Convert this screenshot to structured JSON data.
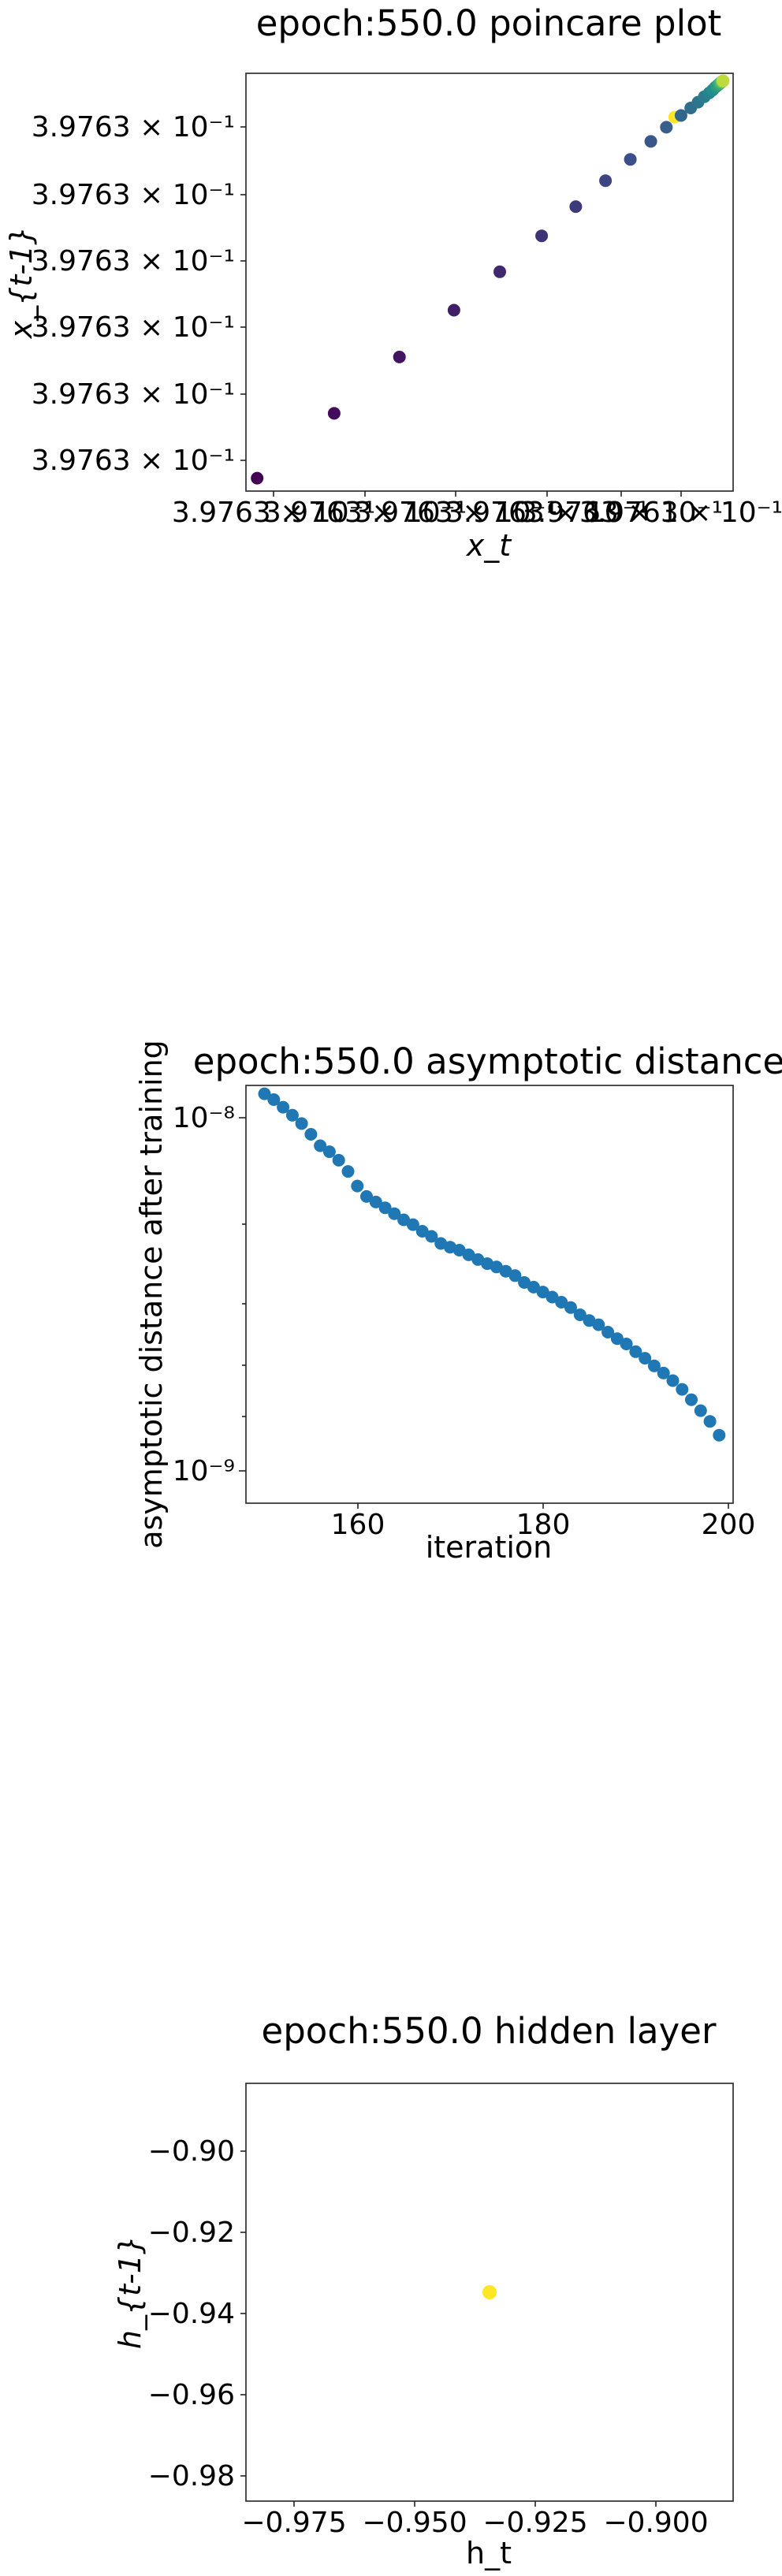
{
  "colors": {
    "viridis_dark": "#440154",
    "viridis_mid": "#3b528b",
    "viridis_teal": "#21918c",
    "viridis_green": "#5ec962",
    "viridis_yellow": "#fde725",
    "tab_blue": "#1f77b4"
  },
  "chart_data": [
    {
      "type": "scatter",
      "title": "epoch:550.0 poincare plot",
      "xlabel": "x_t",
      "ylabel": "x_{t-1}",
      "colormap": "viridis",
      "x_tick_labels": [
        "3.9763 × 10⁻¹",
        "3.9763 × 10⁻¹",
        "3.9763 × 10⁻¹",
        "3.9763 × 10⁻¹",
        "3.9763 × 10⁻¹",
        "3.9763 × 10⁻¹"
      ],
      "y_tick_labels": [
        "3.9763 × 10⁻¹",
        "3.9763 × 10⁻¹",
        "3.9763 × 10⁻¹",
        "3.9763 × 10⁻¹",
        "3.9763 × 10⁻¹",
        "3.9763 × 10⁻¹"
      ],
      "xlim": [
        0,
        1
      ],
      "ylim": [
        0,
        1
      ],
      "points": [
        {
          "x": 0.023,
          "y": 0.031,
          "c": 0.0
        },
        {
          "x": 0.181,
          "y": 0.186,
          "c": 0.03
        },
        {
          "x": 0.315,
          "y": 0.321,
          "c": 0.06
        },
        {
          "x": 0.427,
          "y": 0.433,
          "c": 0.09
        },
        {
          "x": 0.521,
          "y": 0.525,
          "c": 0.12
        },
        {
          "x": 0.607,
          "y": 0.611,
          "c": 0.15
        },
        {
          "x": 0.677,
          "y": 0.681,
          "c": 0.18
        },
        {
          "x": 0.738,
          "y": 0.743,
          "c": 0.21
        },
        {
          "x": 0.789,
          "y": 0.794,
          "c": 0.24
        },
        {
          "x": 0.831,
          "y": 0.837,
          "c": 0.27
        },
        {
          "x": 0.863,
          "y": 0.871,
          "c": 0.3
        },
        {
          "x": 0.893,
          "y": 0.899,
          "c": 0.33
        },
        {
          "x": 0.913,
          "y": 0.917,
          "c": 0.36
        },
        {
          "x": 0.928,
          "y": 0.931,
          "c": 0.39
        },
        {
          "x": 0.941,
          "y": 0.944,
          "c": 0.42
        },
        {
          "x": 0.951,
          "y": 0.953,
          "c": 0.45
        },
        {
          "x": 0.958,
          "y": 0.96,
          "c": 0.48
        },
        {
          "x": 0.963,
          "y": 0.966,
          "c": 0.51
        },
        {
          "x": 0.967,
          "y": 0.97,
          "c": 0.54
        },
        {
          "x": 0.97,
          "y": 0.973,
          "c": 0.57
        },
        {
          "x": 0.972,
          "y": 0.975,
          "c": 0.6
        },
        {
          "x": 0.974,
          "y": 0.977,
          "c": 0.63
        },
        {
          "x": 0.975,
          "y": 0.978,
          "c": 0.66
        },
        {
          "x": 0.976,
          "y": 0.979,
          "c": 0.69
        },
        {
          "x": 0.977,
          "y": 0.98,
          "c": 0.72
        },
        {
          "x": 0.9775,
          "y": 0.9805,
          "c": 0.75
        },
        {
          "x": 0.978,
          "y": 0.981,
          "c": 0.78
        },
        {
          "x": 0.9785,
          "y": 0.9812,
          "c": 0.81
        },
        {
          "x": 0.979,
          "y": 0.9815,
          "c": 0.84
        },
        {
          "x": 0.9792,
          "y": 0.9818,
          "c": 0.87
        },
        {
          "x": 0.9794,
          "y": 0.982,
          "c": 0.9
        },
        {
          "x": 0.88,
          "y": 0.895,
          "c": 1.0
        }
      ]
    },
    {
      "type": "scatter",
      "title": "epoch:550.0 asymptotic distance",
      "xlabel": "iteration",
      "ylabel": "asymptotic distance after training",
      "yscale": "log",
      "xlim": [
        148,
        200.5
      ],
      "ylim": [
        8.7e-10,
        1.18e-08
      ],
      "xticks": [
        160,
        180,
        200
      ],
      "x_tick_labels": [
        "160",
        "180",
        "200"
      ],
      "yticks": [
        1e-08,
        1e-09
      ],
      "y_tick_labels": [
        "10⁻⁸",
        "10⁻⁹"
      ],
      "x": [
        150,
        151,
        152,
        153,
        154,
        155,
        156,
        157,
        158,
        159,
        160,
        161,
        162,
        163,
        164,
        165,
        166,
        167,
        168,
        169,
        170,
        171,
        172,
        173,
        174,
        175,
        176,
        177,
        178,
        179,
        180,
        181,
        182,
        183,
        184,
        185,
        186,
        187,
        188,
        189,
        190,
        191,
        192,
        193,
        194,
        195,
        196,
        197,
        198,
        199
      ],
      "values": [
        1.12e-08,
        1.08e-08,
        1.03e-08,
        9.8e-09,
        9.3e-09,
        8.7e-09,
        8.1e-09,
        7.8e-09,
        7.4e-09,
        6.9e-09,
        6.3e-09,
        5.9e-09,
        5.7e-09,
        5.5e-09,
        5.3e-09,
        5.1e-09,
        4.95e-09,
        4.75e-09,
        4.6e-09,
        4.4e-09,
        4.3e-09,
        4.22e-09,
        4.1e-09,
        3.98e-09,
        3.88e-09,
        3.8e-09,
        3.7e-09,
        3.6e-09,
        3.45e-09,
        3.35e-09,
        3.25e-09,
        3.15e-09,
        3.05e-09,
        2.95e-09,
        2.82e-09,
        2.72e-09,
        2.65e-09,
        2.53e-09,
        2.43e-09,
        2.35e-09,
        2.24e-09,
        2.15e-09,
        2.05e-09,
        1.96e-09,
        1.87e-09,
        1.77e-09,
        1.66e-09,
        1.55e-09,
        1.45e-09,
        1.33e-09
      ]
    },
    {
      "type": "scatter",
      "title": "epoch:550.0 hidden layer",
      "xlabel": "h_t",
      "ylabel": "h_{t-1}",
      "xlim": [
        -0.9855,
        -0.8845
      ],
      "ylim": [
        -0.9865,
        -0.8835
      ],
      "xticks": [
        -0.975,
        -0.95,
        -0.925,
        -0.9
      ],
      "x_tick_labels": [
        "−0.975",
        "−0.950",
        "−0.925",
        "−0.900"
      ],
      "yticks": [
        -0.9,
        -0.92,
        -0.94,
        -0.96,
        -0.98
      ],
      "y_tick_labels": [
        "−0.90",
        "−0.92",
        "−0.94",
        "−0.96",
        "−0.98"
      ],
      "points": [
        {
          "x": -0.935,
          "y": -0.935
        }
      ]
    }
  ]
}
